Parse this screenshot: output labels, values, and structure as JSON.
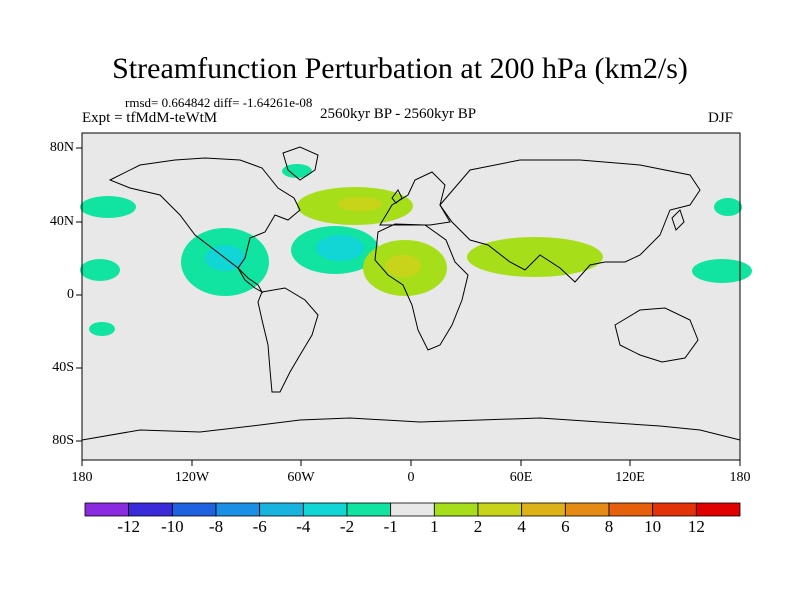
{
  "title": "Streamfunction Perturbation at 200 hPa (km2/s)",
  "stats": "rmsd= 0.664842 diff= -1.64261e-08",
  "expt": "Expt = tfMdM-teWtM",
  "period": "2560kyr BP - 2560kyr BP",
  "season": "DJF",
  "lat_labels": [
    "80N",
    "40N",
    "0",
    "40S",
    "80S"
  ],
  "lon_labels": [
    "180",
    "120W",
    "60W",
    "0",
    "60E",
    "120E",
    "180"
  ],
  "colorbar": {
    "labels": [
      "-12",
      "-10",
      "-8",
      "-6",
      "-4",
      "-2",
      "-1",
      "1",
      "2",
      "4",
      "6",
      "8",
      "10",
      "12"
    ],
    "colors": [
      "#8a2be2",
      "#3a2bd8",
      "#1f62e0",
      "#1a8fe3",
      "#19b3e0",
      "#12d5d5",
      "#10e4a0",
      "#e8e8e8",
      "#a6df1a",
      "#c8d41a",
      "#dcb218",
      "#e58a12",
      "#e6600c",
      "#e43208",
      "#e00000"
    ]
  },
  "colors": {
    "background": "#e8e8e8",
    "coast": "#000000"
  }
}
